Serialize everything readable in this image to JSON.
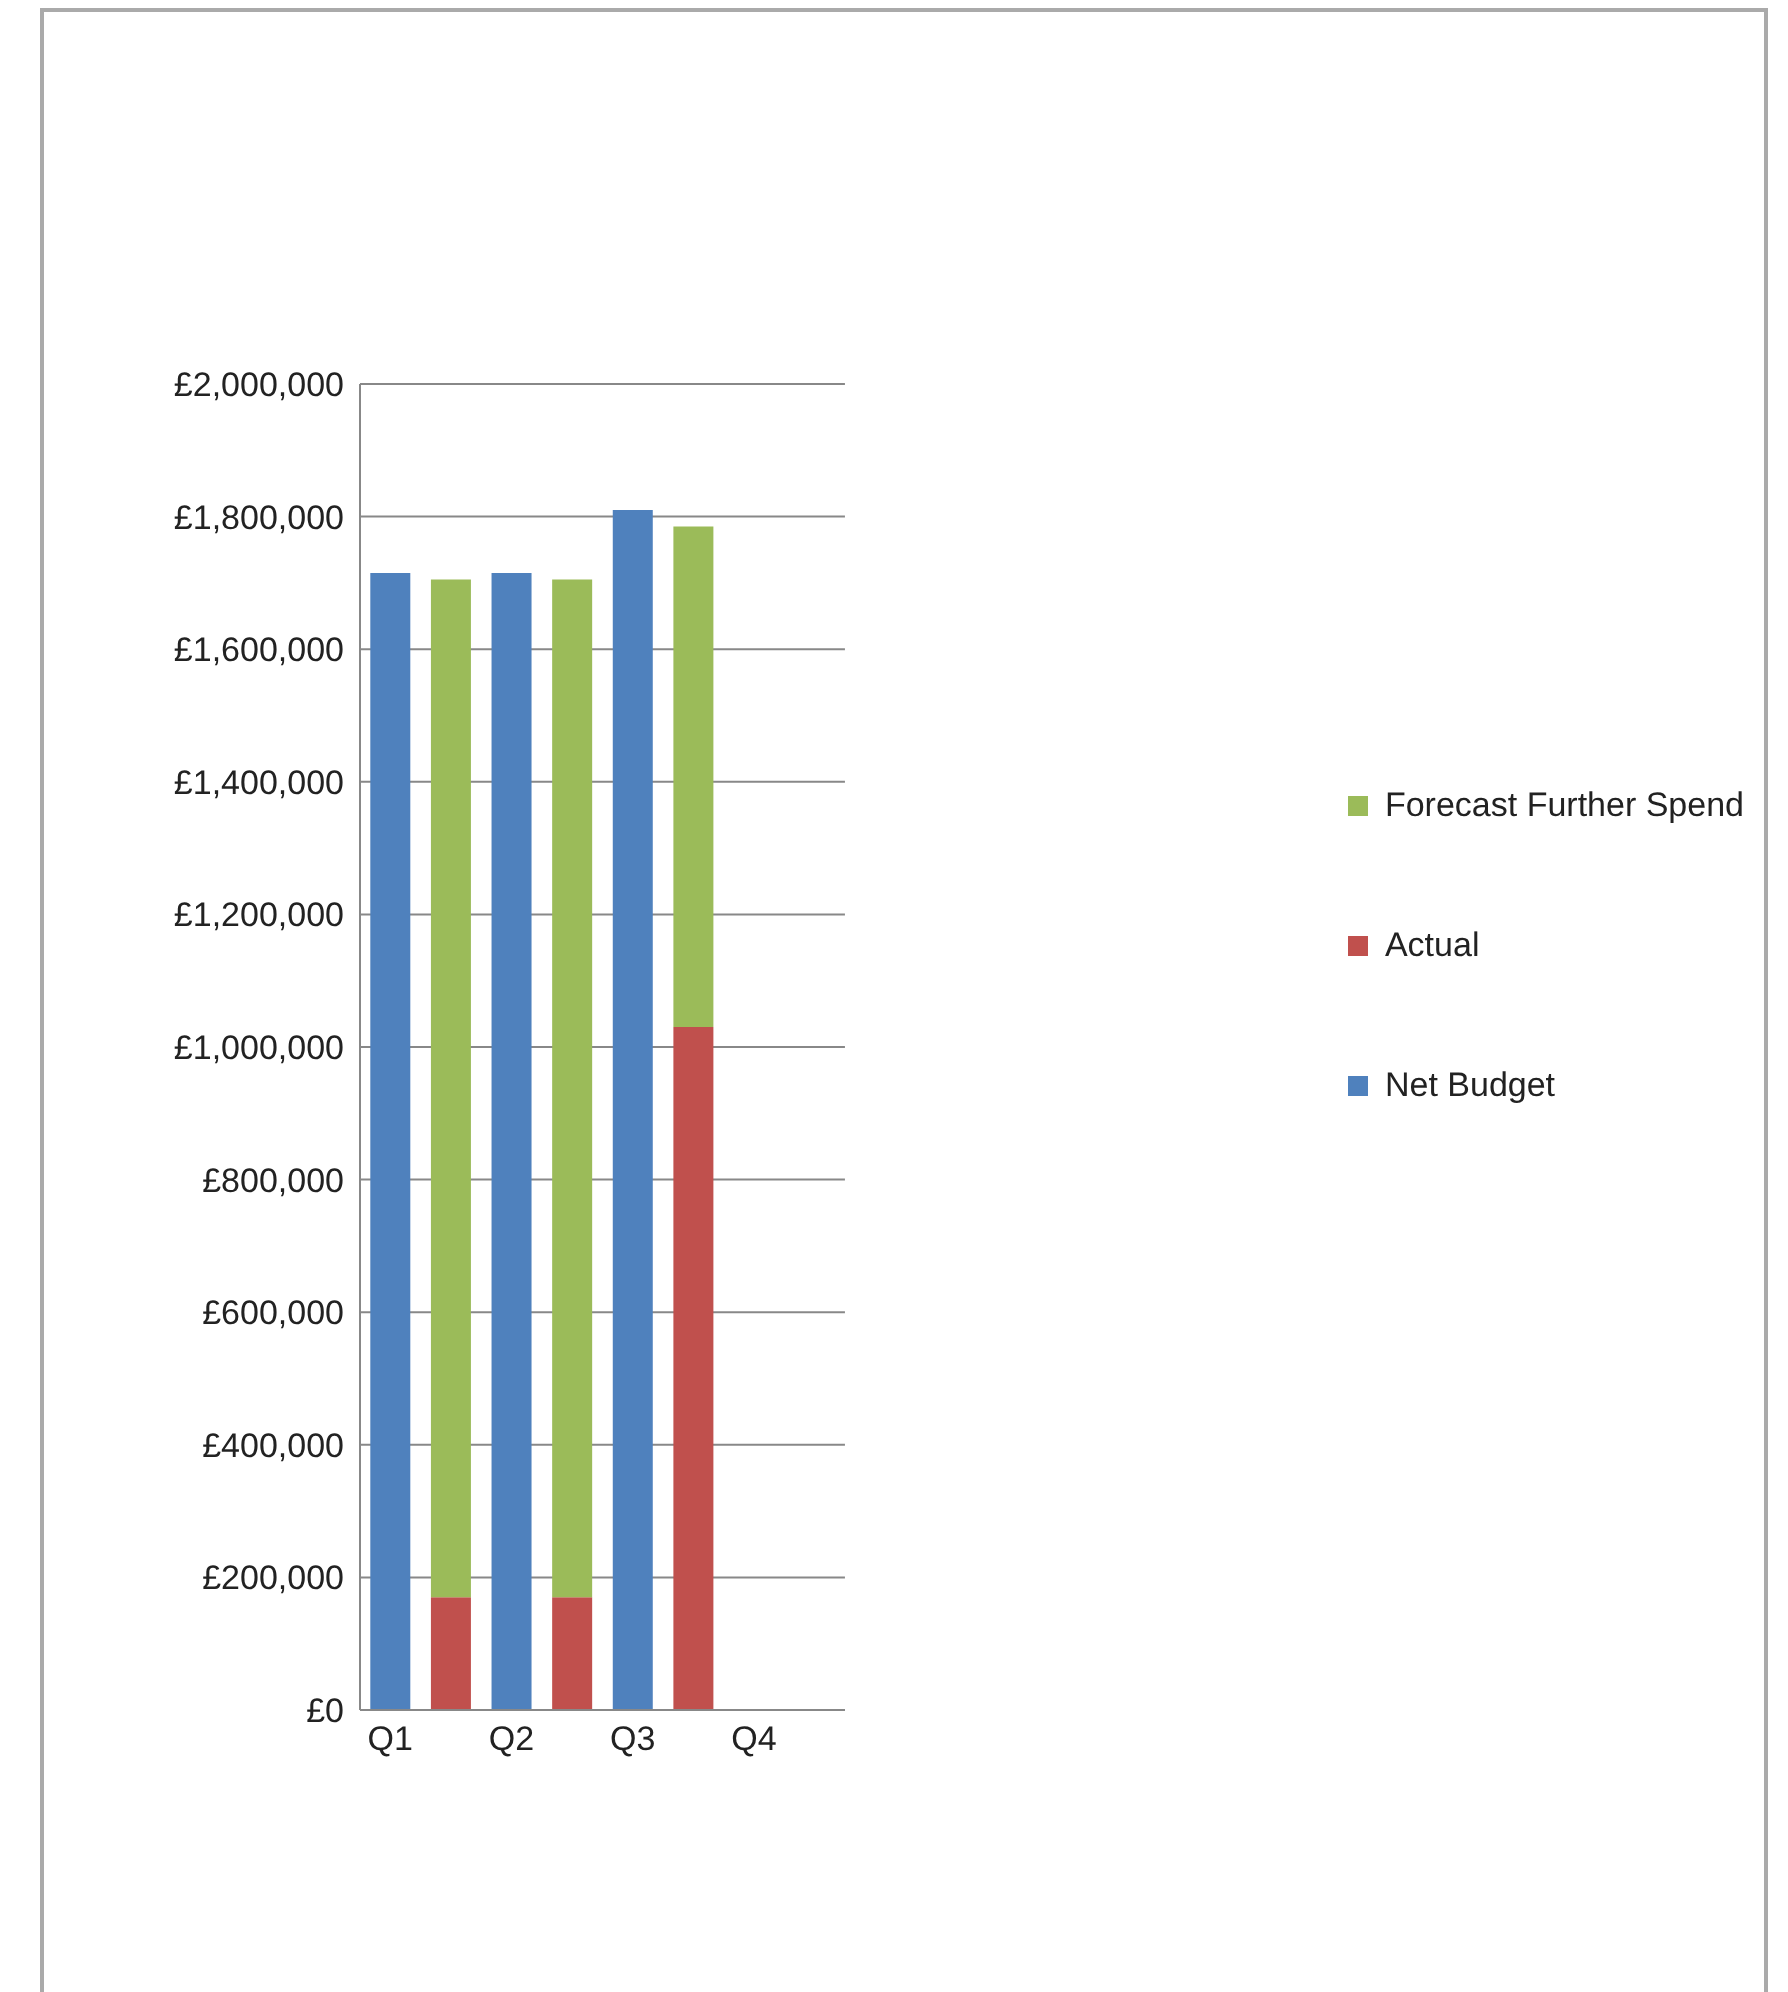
{
  "chart_data": {
    "type": "bar",
    "stacked": true,
    "categories": [
      "Q1",
      null,
      "Q2",
      null,
      "Q3",
      null,
      "Q4",
      null
    ],
    "series": [
      {
        "name": "Net Budget",
        "color": "#4f81bd",
        "values": [
          1715000,
          null,
          1715000,
          null,
          1810000,
          null,
          null,
          null
        ]
      },
      {
        "name": "Actual",
        "color": "#c0504d",
        "values": [
          null,
          170000,
          null,
          170000,
          null,
          1030000,
          null,
          null
        ]
      },
      {
        "name": "Forecast Further Spend",
        "color": "#9bbb59",
        "values": [
          null,
          1535000,
          null,
          1535000,
          null,
          755000,
          null,
          null
        ]
      }
    ],
    "ylim": [
      0,
      2000000
    ],
    "yticks": [
      {
        "value": 0,
        "label": "£0"
      },
      {
        "value": 200000,
        "label": "£200,000"
      },
      {
        "value": 400000,
        "label": "£400,000"
      },
      {
        "value": 600000,
        "label": "£600,000"
      },
      {
        "value": 800000,
        "label": "£800,000"
      },
      {
        "value": 1000000,
        "label": "£1,000,000"
      },
      {
        "value": 1200000,
        "label": "£1,200,000"
      },
      {
        "value": 1400000,
        "label": "£1,400,000"
      },
      {
        "value": 1600000,
        "label": "£1,600,000"
      },
      {
        "value": 1800000,
        "label": "£1,800,000"
      },
      {
        "value": 2000000,
        "label": "£2,000,000"
      }
    ],
    "grid": "y",
    "legend": "right"
  }
}
